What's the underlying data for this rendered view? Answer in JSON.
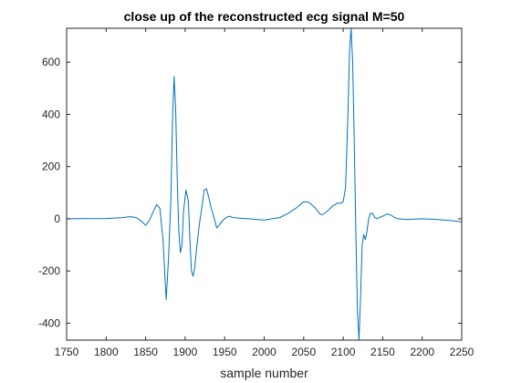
{
  "chart_data": {
    "type": "line",
    "title": "close up of the reconstructed ecg signal M=50",
    "xlabel": "sample number",
    "ylabel": "",
    "xlim": [
      1750,
      2250
    ],
    "ylim": [
      -465,
      730
    ],
    "xticks": [
      1750,
      1800,
      1850,
      1900,
      1950,
      2000,
      2050,
      2100,
      2150,
      2200,
      2250
    ],
    "yticks": [
      -400,
      -200,
      0,
      200,
      400,
      600
    ],
    "grid": false,
    "legend": "none",
    "colors": {
      "line": "#0072BD",
      "axes": "#262626",
      "background": "#ffffff"
    },
    "series": [
      {
        "x": [
          1750,
          1800,
          1820,
          1830,
          1838,
          1845,
          1850,
          1855,
          1860,
          1864,
          1868,
          1872,
          1876,
          1879,
          1882,
          1884,
          1886,
          1888,
          1890,
          1892,
          1894,
          1896,
          1898,
          1901,
          1904,
          1906,
          1908,
          1910,
          1912,
          1915,
          1918,
          1921,
          1924,
          1927,
          1930,
          1933,
          1936,
          1940,
          1944,
          1948,
          1952,
          1956,
          1960,
          1965,
          1970,
          1980,
          2000,
          2020,
          2030,
          2040,
          2050,
          2055,
          2060,
          2065,
          2070,
          2073,
          2077,
          2082,
          2087,
          2093,
          2097,
          2100,
          2103,
          2106,
          2108,
          2110,
          2112,
          2114,
          2116,
          2118,
          2120,
          2122,
          2124,
          2126,
          2128,
          2130,
          2132,
          2134,
          2137,
          2140,
          2143,
          2146,
          2150,
          2155,
          2160,
          2165,
          2170,
          2180,
          2200,
          2220,
          2240,
          2250
        ],
        "y": [
          0,
          1,
          4,
          8,
          5,
          -10,
          -25,
          -5,
          30,
          55,
          40,
          -80,
          -310,
          -150,
          80,
          380,
          545,
          420,
          150,
          -50,
          -130,
          -100,
          30,
          110,
          70,
          -80,
          -200,
          -220,
          -190,
          -100,
          -20,
          40,
          110,
          115,
          80,
          40,
          10,
          -35,
          -20,
          -5,
          5,
          10,
          5,
          3,
          2,
          0,
          -5,
          5,
          20,
          40,
          65,
          65,
          55,
          40,
          20,
          15,
          22,
          35,
          50,
          60,
          60,
          65,
          120,
          400,
          640,
          730,
          600,
          300,
          -50,
          -350,
          -465,
          -300,
          -100,
          -60,
          -80,
          -50,
          -5,
          20,
          22,
          5,
          0,
          5,
          10,
          18,
          15,
          5,
          0,
          -3,
          0,
          -3,
          -8,
          -12
        ]
      }
    ]
  }
}
